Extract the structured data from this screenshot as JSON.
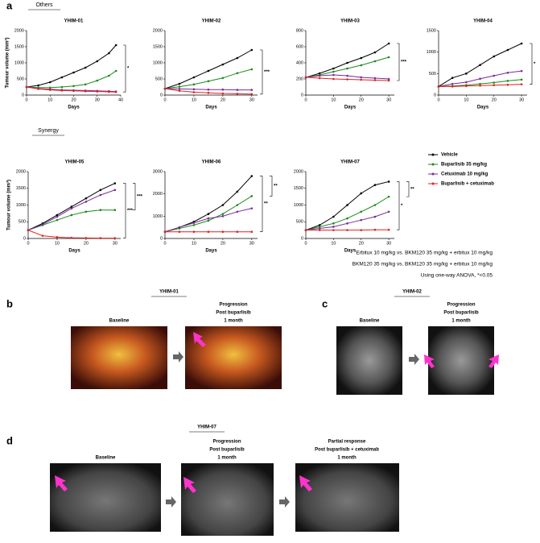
{
  "panel_labels": [
    "a",
    "b",
    "c",
    "d"
  ],
  "groups": [
    "Others",
    "Synergy"
  ],
  "chart_data": [
    {
      "type": "line",
      "title": "YHIM-01",
      "xlabel": "Days",
      "ylabel": "Tumour volume (mm³)",
      "x": [
        0,
        5,
        10,
        15,
        20,
        25,
        30,
        35,
        38
      ],
      "xlim": [
        0,
        40
      ],
      "xticks": [
        0,
        10,
        20,
        30,
        40
      ],
      "ylim": [
        0,
        2000
      ],
      "yticks": [
        0,
        500,
        1000,
        1500,
        2000
      ],
      "annotations": [
        "*"
      ],
      "series": [
        {
          "color": "#000000",
          "values": [
            250,
            300,
            400,
            550,
            700,
            850,
            1050,
            1300,
            1550
          ]
        },
        {
          "color": "#1a8a1a",
          "values": [
            250,
            230,
            230,
            250,
            280,
            330,
            450,
            600,
            750
          ]
        },
        {
          "color": "#7a2a9a",
          "values": [
            250,
            200,
            180,
            160,
            150,
            140,
            130,
            120,
            110
          ]
        },
        {
          "color": "#e02020",
          "values": [
            250,
            190,
            160,
            140,
            130,
            120,
            110,
            100,
            95
          ]
        }
      ]
    },
    {
      "type": "line",
      "title": "YHIM-02",
      "xlabel": "Days",
      "x": [
        0,
        5,
        10,
        15,
        20,
        25,
        30
      ],
      "xlim": [
        0,
        32
      ],
      "xticks": [
        0,
        10,
        20,
        30
      ],
      "ylim": [
        0,
        2000
      ],
      "yticks": [
        0,
        500,
        1000,
        1500,
        2000
      ],
      "annotations": [
        "***"
      ],
      "series": [
        {
          "color": "#000000",
          "values": [
            200,
            350,
            550,
            750,
            950,
            1150,
            1400
          ]
        },
        {
          "color": "#1a8a1a",
          "values": [
            200,
            260,
            330,
            430,
            530,
            680,
            800
          ]
        },
        {
          "color": "#7a2a9a",
          "values": [
            200,
            190,
            180,
            170,
            170,
            160,
            160
          ]
        },
        {
          "color": "#e02020",
          "values": [
            200,
            130,
            90,
            70,
            50,
            40,
            30
          ]
        }
      ]
    },
    {
      "type": "line",
      "title": "YHIM-03",
      "xlabel": "Days",
      "x": [
        0,
        5,
        10,
        15,
        20,
        25,
        30
      ],
      "xlim": [
        0,
        32
      ],
      "xticks": [
        0,
        10,
        20,
        30
      ],
      "ylim": [
        0,
        800
      ],
      "yticks": [
        0,
        200,
        400,
        600,
        800
      ],
      "annotations": [
        "***"
      ],
      "series": [
        {
          "color": "#000000",
          "values": [
            220,
            270,
            330,
            400,
            460,
            530,
            640
          ]
        },
        {
          "color": "#1a8a1a",
          "values": [
            220,
            250,
            290,
            330,
            370,
            420,
            470
          ]
        },
        {
          "color": "#7a2a9a",
          "values": [
            220,
            240,
            250,
            240,
            220,
            210,
            200
          ]
        },
        {
          "color": "#e02020",
          "values": [
            220,
            210,
            200,
            195,
            190,
            185,
            180
          ]
        }
      ]
    },
    {
      "type": "line",
      "title": "YHIM-04",
      "xlabel": "Days",
      "x": [
        0,
        5,
        10,
        15,
        20,
        25,
        30
      ],
      "xlim": [
        0,
        32
      ],
      "xticks": [
        0,
        10,
        20,
        30
      ],
      "ylim": [
        0,
        1500
      ],
      "yticks": [
        0,
        500,
        1000,
        1500
      ],
      "annotations": [
        "*"
      ],
      "series": [
        {
          "color": "#000000",
          "values": [
            200,
            400,
            500,
            700,
            900,
            1050,
            1200
          ]
        },
        {
          "color": "#1a8a1a",
          "values": [
            200,
            210,
            230,
            260,
            290,
            330,
            360
          ]
        },
        {
          "color": "#7a2a9a",
          "values": [
            200,
            260,
            300,
            380,
            450,
            520,
            560
          ]
        },
        {
          "color": "#e02020",
          "values": [
            200,
            200,
            210,
            220,
            230,
            240,
            250
          ]
        }
      ]
    },
    {
      "type": "line",
      "title": "YHIM-05",
      "xlabel": "Days",
      "ylabel": "Tumour volume (mm³)",
      "x": [
        0,
        5,
        10,
        15,
        20,
        25,
        30
      ],
      "xlim": [
        0,
        32
      ],
      "xticks": [
        0,
        10,
        20,
        30
      ],
      "ylim": [
        0,
        2000
      ],
      "yticks": [
        0,
        500,
        1000,
        1500,
        2000
      ],
      "annotations": [
        "***",
        "***"
      ],
      "series": [
        {
          "color": "#000000",
          "values": [
            250,
            450,
            700,
            950,
            1200,
            1450,
            1650
          ]
        },
        {
          "color": "#1a8a1a",
          "values": [
            250,
            400,
            550,
            700,
            800,
            850,
            850
          ]
        },
        {
          "color": "#7a2a9a",
          "values": [
            250,
            420,
            650,
            900,
            1100,
            1300,
            1450
          ]
        },
        {
          "color": "#e02020",
          "values": [
            250,
            80,
            40,
            20,
            15,
            10,
            10
          ]
        }
      ]
    },
    {
      "type": "line",
      "title": "YHIM-06",
      "xlabel": "Days",
      "x": [
        0,
        5,
        10,
        15,
        20,
        25,
        30
      ],
      "xlim": [
        0,
        32
      ],
      "xticks": [
        0,
        10,
        20,
        30
      ],
      "ylim": [
        0,
        3000
      ],
      "yticks": [
        0,
        1000,
        2000,
        3000
      ],
      "annotations": [
        "**",
        "**"
      ],
      "series": [
        {
          "color": "#000000",
          "values": [
            300,
            500,
            750,
            1100,
            1500,
            2100,
            2800
          ]
        },
        {
          "color": "#1a8a1a",
          "values": [
            300,
            450,
            600,
            800,
            1100,
            1500,
            1900
          ]
        },
        {
          "color": "#7a2a9a",
          "values": [
            300,
            500,
            700,
            900,
            1000,
            1200,
            1350
          ]
        },
        {
          "color": "#e02020",
          "values": [
            300,
            300,
            300,
            300,
            300,
            300,
            300
          ]
        }
      ]
    },
    {
      "type": "line",
      "title": "YHIM-07",
      "xlabel": "Days",
      "x": [
        0,
        5,
        10,
        15,
        20,
        25,
        30
      ],
      "xlim": [
        0,
        32
      ],
      "xticks": [
        0,
        10,
        20,
        30
      ],
      "ylim": [
        0,
        2000
      ],
      "yticks": [
        0,
        500,
        1000,
        1500,
        2000
      ],
      "annotations": [
        "*",
        "**"
      ],
      "series": [
        {
          "name": "Vehicle",
          "color": "#000000",
          "values": [
            250,
            400,
            650,
            1000,
            1350,
            1600,
            1700
          ]
        },
        {
          "name": "Buparlisib 35 mg/kg",
          "color": "#1a8a1a",
          "values": [
            250,
            350,
            450,
            600,
            800,
            1000,
            1250
          ]
        },
        {
          "name": "Cetuximab 10 mg/kg",
          "color": "#7a2a9a",
          "values": [
            250,
            300,
            350,
            450,
            550,
            650,
            800
          ]
        },
        {
          "name": "Buparlisib + cetuximab",
          "color": "#e02020",
          "values": [
            250,
            250,
            250,
            250,
            250,
            260,
            260
          ]
        }
      ]
    }
  ],
  "notes": [
    "Erbitux 10 mg/kg vs. BKM120 35 mg/kg + erbitux 10 mg/kg",
    "BKM120 35 mg/kg vs. BKM120 35 mg/kg + erbitux 10 mg/kg",
    "Using one-way ANOVA, *<0.05"
  ],
  "panel_b": {
    "patient": "YHIM-01",
    "captions": [
      [
        "Baseline"
      ],
      [
        "Progression",
        "Post buparlisib",
        "1 month"
      ]
    ]
  },
  "panel_c": {
    "patient": "YHIM-02",
    "captions": [
      [
        "Baseline"
      ],
      [
        "Progression",
        "Post buparlisib",
        "1 month"
      ]
    ]
  },
  "panel_d": {
    "patient": "YHIM-07",
    "captions": [
      [
        "Baseline"
      ],
      [
        "Progression",
        "Post buparlisib",
        "1 month"
      ],
      [
        "Partial response",
        "Post buparlisib + cetuximab",
        "1 month"
      ]
    ]
  }
}
